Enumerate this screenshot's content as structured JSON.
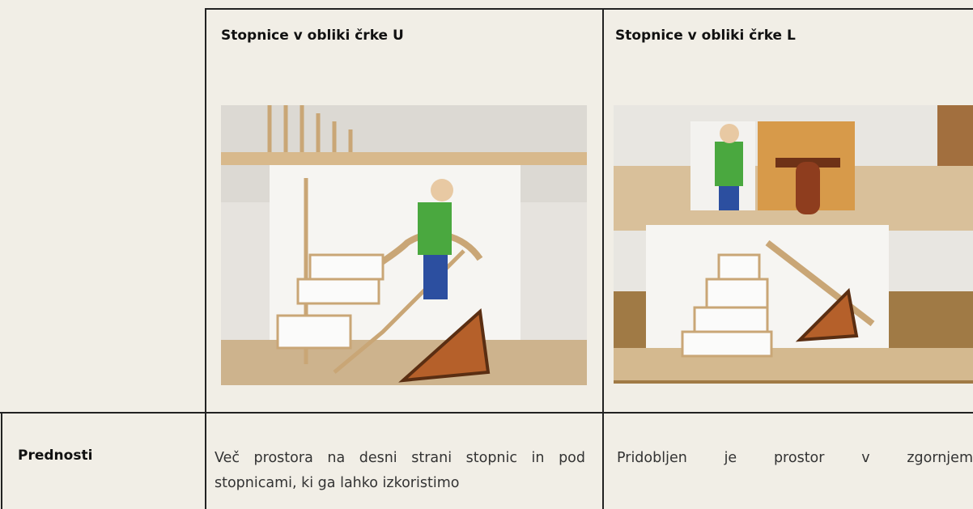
{
  "table": {
    "columns": [
      "Stopnice v obliki črke U",
      "Stopnice v obliki črke L"
    ],
    "rows": [
      {
        "label": "Prednosti",
        "cells": [
          "Več prostora na desni strani stopnic in pod stopnicami, ki ga lahko izkoristimo",
          "Pridobljen je prostor v zgornjem"
        ]
      }
    ]
  }
}
